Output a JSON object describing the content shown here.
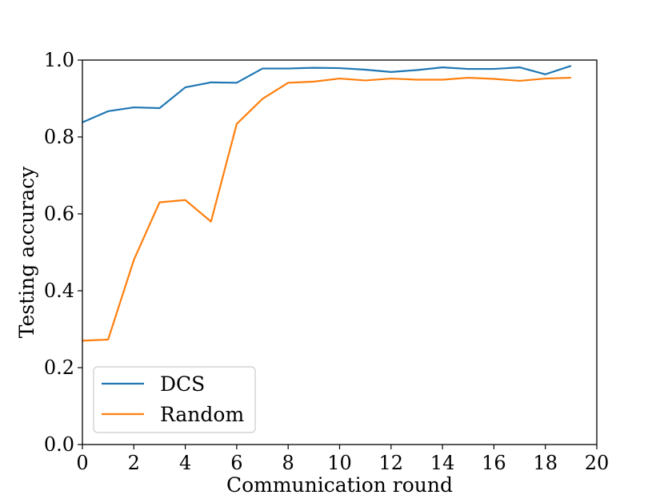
{
  "chart_data": {
    "type": "line",
    "title": "",
    "xlabel": "Communication round",
    "ylabel": "Testing accuracy",
    "xlim": [
      0,
      20
    ],
    "ylim": [
      0.0,
      1.0
    ],
    "xticks": [
      0,
      2,
      4,
      6,
      8,
      10,
      12,
      14,
      16,
      18,
      20
    ],
    "xtick_labels": [
      "0",
      "2",
      "4",
      "6",
      "8",
      "10",
      "12",
      "14",
      "16",
      "18",
      "20"
    ],
    "yticks": [
      0.0,
      0.2,
      0.4,
      0.6,
      0.8,
      1.0
    ],
    "ytick_labels": [
      "0.0",
      "0.2",
      "0.4",
      "0.6",
      "0.8",
      "1.0"
    ],
    "grid": false,
    "legend_position": "lower-left",
    "x": [
      0,
      1,
      2,
      3,
      4,
      5,
      6,
      7,
      8,
      9,
      10,
      11,
      12,
      13,
      14,
      15,
      16,
      17,
      18,
      19
    ],
    "series": [
      {
        "name": "DCS",
        "color": "#1f77b4",
        "values": [
          0.838,
          0.867,
          0.877,
          0.875,
          0.929,
          0.942,
          0.941,
          0.978,
          0.978,
          0.98,
          0.979,
          0.975,
          0.969,
          0.974,
          0.981,
          0.977,
          0.977,
          0.981,
          0.963,
          0.985
        ]
      },
      {
        "name": "Random",
        "color": "#ff7f0e",
        "values": [
          0.27,
          0.273,
          0.48,
          0.63,
          0.636,
          0.58,
          0.834,
          0.899,
          0.941,
          0.944,
          0.952,
          0.947,
          0.952,
          0.949,
          0.949,
          0.954,
          0.951,
          0.946,
          0.952,
          0.954
        ]
      }
    ]
  }
}
